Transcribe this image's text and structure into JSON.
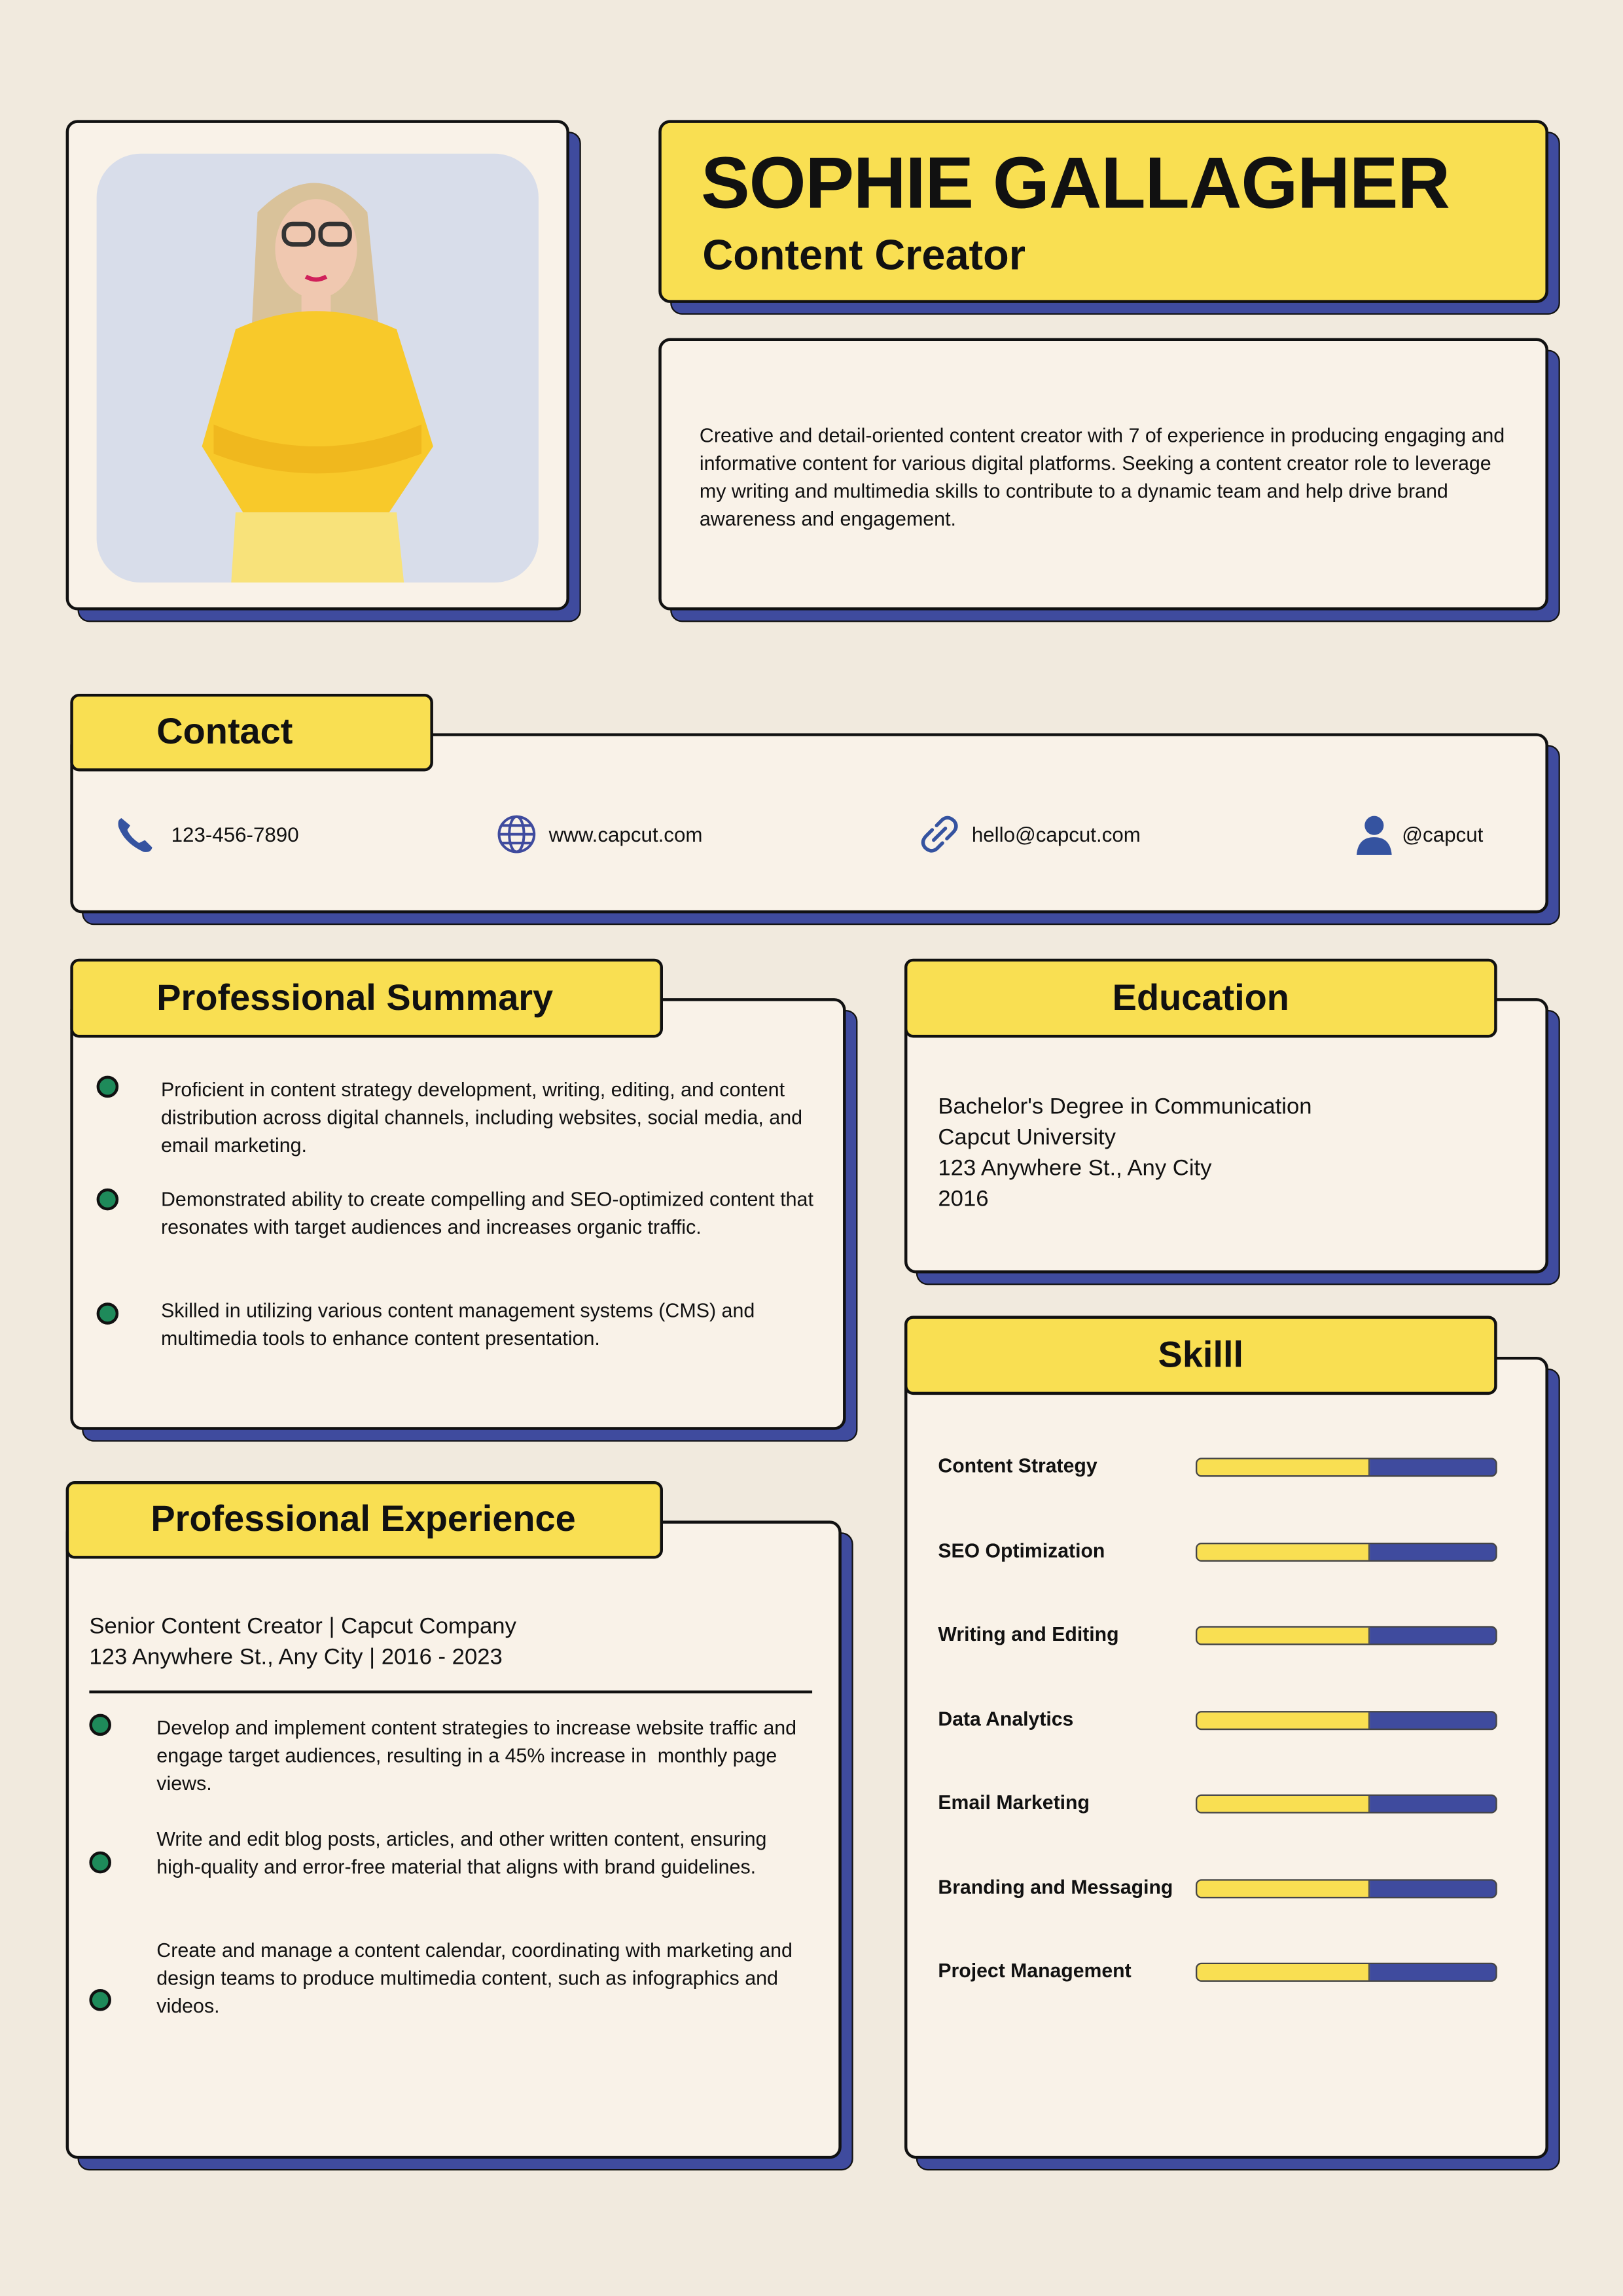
{
  "colors": {
    "accent_yellow": "#F9DF52",
    "accent_blue": "#3F4B9E",
    "bullet_green": "#1E8A5A",
    "background": "#F1EADE",
    "card": "#F9F2E8"
  },
  "header": {
    "name": "SOPHIE GALLAGHER",
    "title": "Content Creator"
  },
  "profile": {
    "summary": "Creative and detail-oriented content creator with 7 of experience in producing engaging and informative content for various digital platforms. Seeking a content creator role to leverage my writing and multimedia skills to contribute to a dynamic team and help drive brand awareness and engagement."
  },
  "contact": {
    "heading": "Contact",
    "items": [
      {
        "icon": "phone-icon",
        "text": "123-456-7890"
      },
      {
        "icon": "globe-icon",
        "text": "www.capcut.com"
      },
      {
        "icon": "link-icon",
        "text": "hello@capcut.com"
      },
      {
        "icon": "user-icon",
        "text": "@capcut"
      }
    ]
  },
  "summary": {
    "heading": "Professional Summary",
    "bullets": [
      "Proficient in content strategy development, writing, editing, and content distribution across digital channels, including websites, social media, and email marketing.",
      "Demonstrated ability to create compelling and SEO-optimized content that resonates with target audiences and increases organic traffic.",
      "Skilled in utilizing various content management systems (CMS) and multimedia tools to enhance content presentation."
    ]
  },
  "education": {
    "heading": "Education",
    "lines": [
      "Bachelor's Degree in Communication",
      "Capcut University",
      "123 Anywhere St., Any City",
      "2016"
    ]
  },
  "skills": {
    "heading": "Skilll",
    "items": [
      {
        "name": "Content Strategy",
        "level": 0.58
      },
      {
        "name": "SEO Optimization",
        "level": 0.58
      },
      {
        "name": "Writing and Editing",
        "level": 0.58
      },
      {
        "name": "Data Analytics",
        "level": 0.58
      },
      {
        "name": "Email Marketing",
        "level": 0.58
      },
      {
        "name": "Branding and Messaging",
        "level": 0.58
      },
      {
        "name": "Project Management",
        "level": 0.58
      }
    ]
  },
  "experience": {
    "heading": "Professional Experience",
    "role": "Senior Content Creator | Capcut Company",
    "location": "123 Anywhere St., Any City | 2016 - 2023",
    "bullets": [
      "Develop and implement content strategies to increase website traffic and engage target audiences, resulting in a 45% increase in  monthly page views.",
      "Write and edit blog posts, articles, and other written content, ensuring high-quality and error-free material that aligns with brand guidelines.",
      "Create and manage a content calendar, coordinating with marketing and design teams to produce multimedia content, such as infographics and videos."
    ]
  }
}
